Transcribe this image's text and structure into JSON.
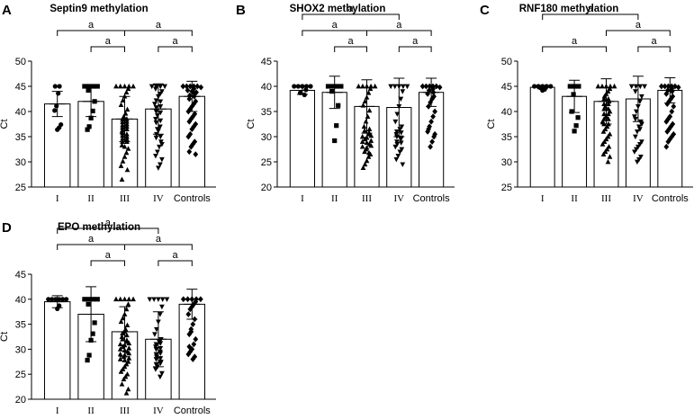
{
  "figure": {
    "panels": [
      {
        "letter": "A",
        "title": "Septin9 methylation",
        "chart_data": {
          "type": "bar",
          "title": "Septin9 methylation",
          "ylabel": "Ct",
          "xlabel": "",
          "ylim": [
            25,
            50
          ],
          "yticks": [
            25,
            30,
            35,
            40,
            45,
            50
          ],
          "categories": [
            "I",
            "II",
            "III",
            "IV",
            "Controls"
          ],
          "values": [
            41.5,
            42.0,
            38.5,
            40.5,
            43.0
          ],
          "sd": [
            2.5,
            3.0,
            4.5,
            5.0,
            3.0
          ],
          "markers": [
            "circle",
            "square",
            "triangle-up",
            "triangle-down",
            "diamond"
          ],
          "points": [
            [
              45.0,
              45.0,
              43.6,
              41.1,
              40.2,
              37.4,
              36.8,
              36.4
            ],
            [
              45.0,
              45.0,
              45.0,
              45.0,
              44.2,
              42.0,
              40.1,
              38.7,
              37.0,
              36.4
            ],
            [
              45.0,
              45.0,
              45.0,
              45.0,
              45.0,
              44.5,
              43.8,
              43.0,
              42.2,
              41.3,
              40.4,
              39.6,
              39.0,
              38.4,
              37.9,
              37.3,
              36.8,
              36.3,
              35.7,
              35.2,
              34.6,
              34.0,
              33.3,
              32.6,
              31.8,
              31.0,
              30.1,
              29.2,
              28.4,
              38.0,
              37.0,
              36.0,
              35.0,
              34.0,
              33.0,
              36.5,
              37.5,
              38.5,
              35.5,
              34.5,
              26.5
            ],
            [
              45.0,
              45.0,
              45.0,
              45.0,
              44.5,
              44.0,
              43.5,
              43.0,
              42.2,
              41.5,
              40.8,
              40.0,
              39.2,
              38.5,
              37.8,
              37.0,
              36.2,
              35.5,
              34.8,
              34.0,
              33.0,
              32.0,
              31.2,
              30.5,
              29.5,
              28.8,
              42.0,
              41.0,
              39.8,
              38.2,
              36.5,
              35.0,
              33.5
            ],
            [
              45.0,
              45.0,
              45.0,
              45.0,
              45.0,
              44.8,
              44.5,
              44.2,
              44.0,
              43.8,
              43.5,
              43.2,
              43.0,
              42.5,
              42.0,
              41.5,
              41.0,
              40.5,
              40.0,
              39.5,
              39.0,
              38.5,
              38.0,
              37.5,
              37.0,
              36.5,
              35.5,
              35.0,
              34.0,
              33.5,
              33.0,
              32.0,
              31.5
            ]
          ],
          "comparisons": [
            {
              "from": "I",
              "to": "III",
              "label": "a"
            },
            {
              "from": "II",
              "to": "III",
              "label": "a"
            },
            {
              "from": "III",
              "to": "Controls",
              "label": "a"
            },
            {
              "from": "IV",
              "to": "Controls",
              "label": "a"
            }
          ]
        }
      },
      {
        "letter": "B",
        "title": "SHOX2 methylation",
        "chart_data": {
          "type": "bar",
          "title": "SHOX2 methylation",
          "ylabel": "Ct",
          "xlabel": "",
          "ylim": [
            20,
            45
          ],
          "yticks": [
            20,
            25,
            30,
            35,
            40,
            45
          ],
          "categories": [
            "I",
            "II",
            "III",
            "IV",
            "Controls"
          ],
          "values": [
            39.2,
            38.8,
            36.0,
            35.8,
            38.8
          ],
          "sd": [
            0.8,
            3.2,
            5.3,
            5.8,
            2.8
          ],
          "markers": [
            "circle",
            "square",
            "triangle-up",
            "triangle-down",
            "diamond"
          ],
          "points": [
            [
              40.0,
              40.0,
              40.0,
              40.0,
              40.0,
              39.3,
              38.7,
              38.3
            ],
            [
              40.0,
              40.0,
              40.0,
              40.0,
              39.0,
              36.2,
              32.2,
              29.2
            ],
            [
              40.0,
              40.0,
              40.0,
              40.0,
              40.0,
              39.5,
              38.7,
              37.8,
              37.0,
              36.2,
              35.2,
              34.0,
              33.0,
              32.0,
              31.2,
              30.5,
              30.0,
              29.5,
              29.0,
              28.5,
              28.0,
              27.5,
              27.0,
              26.5,
              26.0,
              25.2,
              24.5,
              23.8,
              31.5,
              30.8,
              29.8,
              28.8,
              27.8,
              26.8,
              30.2,
              29.2,
              28.2
            ],
            [
              40.0,
              40.0,
              40.0,
              40.0,
              40.0,
              39.0,
              37.5,
              36.0,
              34.5,
              33.0,
              32.0,
              31.5,
              31.0,
              30.5,
              30.0,
              29.5,
              29.0,
              28.5,
              28.0,
              27.5,
              27.0,
              26.2,
              25.5,
              24.5,
              30.8,
              29.8,
              28.8
            ],
            [
              40.0,
              40.0,
              40.0,
              40.0,
              40.0,
              39.8,
              39.5,
              39.2,
              38.8,
              38.5,
              38.0,
              37.5,
              36.8,
              36.0,
              35.0,
              34.0,
              33.0,
              32.0,
              31.0,
              30.0,
              29.0,
              28.0,
              31.5,
              30.5
            ]
          ],
          "comparisons": [
            {
              "from": "I",
              "to": "IV",
              "label": "a"
            },
            {
              "from": "I",
              "to": "III",
              "label": "a"
            },
            {
              "from": "III",
              "to": "Controls",
              "label": "a"
            },
            {
              "from": "II",
              "to": "III",
              "label": "a"
            },
            {
              "from": "IV",
              "to": "Controls",
              "label": "a"
            }
          ]
        }
      },
      {
        "letter": "C",
        "title": "RNF180 methylation",
        "chart_data": {
          "type": "bar",
          "title": "RNF180 methylation",
          "ylabel": "Ct",
          "xlabel": "",
          "ylim": [
            25,
            50
          ],
          "yticks": [
            25,
            30,
            35,
            40,
            45,
            50
          ],
          "categories": [
            "I",
            "II",
            "III",
            "IV",
            "Controls"
          ],
          "values": [
            44.8,
            43.0,
            42.0,
            42.5,
            44.2
          ],
          "sd": [
            0.3,
            3.2,
            4.5,
            4.5,
            2.5
          ],
          "markers": [
            "circle",
            "square",
            "triangle-up",
            "triangle-down",
            "diamond"
          ],
          "points": [
            [
              45.0,
              45.0,
              45.0,
              45.0,
              45.0,
              44.7,
              44.4,
              44.2
            ],
            [
              45.0,
              45.0,
              45.0,
              43.4,
              40.0,
              38.8,
              37.2,
              36.1
            ],
            [
              45.0,
              45.0,
              45.0,
              45.0,
              45.0,
              44.5,
              44.0,
              43.5,
              43.0,
              42.5,
              42.0,
              41.5,
              41.0,
              40.5,
              40.0,
              39.5,
              39.0,
              38.5,
              38.0,
              37.5,
              37.0,
              36.5,
              36.0,
              35.5,
              35.0,
              34.5,
              34.0,
              33.5,
              33.0,
              32.5,
              32.0,
              31.5,
              31.0,
              30.0,
              42.5,
              41.5,
              40.5,
              39.5,
              38.5,
              37.5
            ],
            [
              45.0,
              45.0,
              45.0,
              45.0,
              44.0,
              43.0,
              42.0,
              41.0,
              40.0,
              39.0,
              38.0,
              37.0,
              36.0,
              35.0,
              34.0,
              33.5,
              33.0,
              32.5,
              32.0,
              31.0,
              30.5,
              30.0,
              38.5,
              37.5,
              36.5
            ],
            [
              45.0,
              45.0,
              45.0,
              45.0,
              45.0,
              44.8,
              44.5,
              44.2,
              44.0,
              43.5,
              43.0,
              42.5,
              42.0,
              41.5,
              41.0,
              40.0,
              39.0,
              38.5,
              38.0,
              37.5,
              37.0,
              36.5,
              36.0,
              35.5,
              35.0,
              34.5,
              34.0,
              33.0
            ]
          ],
          "comparisons": [
            {
              "from": "I",
              "to": "IV",
              "label": "a"
            },
            {
              "from": "I",
              "to": "III",
              "label": "a"
            },
            {
              "from": "III",
              "to": "Controls",
              "label": "a"
            },
            {
              "from": "IV",
              "to": "Controls",
              "label": "a"
            }
          ]
        }
      },
      {
        "letter": "D",
        "title": "EPO methylation",
        "chart_data": {
          "type": "bar",
          "title": "EPO methylation",
          "ylabel": "Ct",
          "xlabel": "",
          "ylim": [
            20,
            45
          ],
          "yticks": [
            20,
            25,
            30,
            35,
            40,
            45
          ],
          "categories": [
            "I",
            "II",
            "III",
            "IV",
            "Controls"
          ],
          "values": [
            39.5,
            37.0,
            33.5,
            32.0,
            39.0
          ],
          "sd": [
            1.2,
            5.5,
            5.0,
            5.5,
            3.0
          ],
          "markers": [
            "circle",
            "square",
            "triangle-up",
            "triangle-down",
            "diamond"
          ],
          "points": [
            [
              40.0,
              40.0,
              40.0,
              40.0,
              40.0,
              40.0,
              38.7,
              38.1
            ],
            [
              40.0,
              40.0,
              40.0,
              40.0,
              39.0,
              35.3,
              33.1,
              31.8,
              28.8,
              27.8
            ],
            [
              40.0,
              40.0,
              40.0,
              40.0,
              40.0,
              39.0,
              38.0,
              37.0,
              36.2,
              35.5,
              34.8,
              34.0,
              33.2,
              32.5,
              32.0,
              31.5,
              31.0,
              30.5,
              30.0,
              29.5,
              29.0,
              28.5,
              28.0,
              27.5,
              27.0,
              26.5,
              26.0,
              25.5,
              25.0,
              24.5,
              24.0,
              23.0,
              22.0,
              21.2,
              33.5,
              32.8,
              31.8,
              30.8,
              29.8,
              28.8,
              27.8,
              31.2,
              30.2,
              29.2,
              28.2
            ],
            [
              40.0,
              40.0,
              40.0,
              40.0,
              40.0,
              38.5,
              37.0,
              35.5,
              34.0,
              33.0,
              32.0,
              31.5,
              31.0,
              30.5,
              30.0,
              29.5,
              29.0,
              28.5,
              28.0,
              27.5,
              27.0,
              26.5,
              26.0,
              25.2,
              24.5,
              31.2,
              30.2,
              29.2,
              28.2,
              27.2
            ],
            [
              40.0,
              40.0,
              40.0,
              40.0,
              40.0,
              39.5,
              39.0,
              38.5,
              38.0,
              37.0,
              36.0,
              35.0,
              34.0,
              33.0,
              32.0,
              31.0,
              30.0,
              29.5,
              29.0,
              28.5,
              28.0,
              33.5,
              30.5
            ]
          ],
          "comparisons": [
            {
              "from": "I",
              "to": "IV",
              "label": "a"
            },
            {
              "from": "I",
              "to": "III",
              "label": "a"
            },
            {
              "from": "III",
              "to": "Controls",
              "label": "a"
            },
            {
              "from": "II",
              "to": "III",
              "label": "a"
            },
            {
              "from": "IV",
              "to": "Controls",
              "label": "a"
            }
          ]
        }
      }
    ]
  }
}
